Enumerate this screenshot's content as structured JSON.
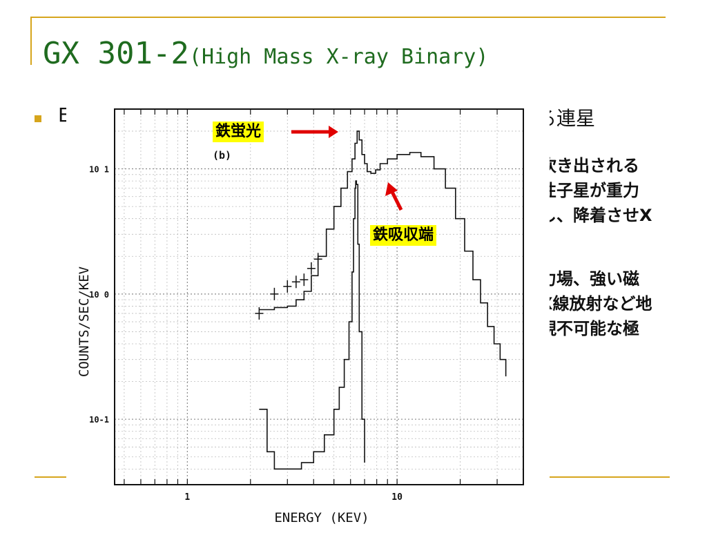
{
  "slide": {
    "title_main": "GX 301-2",
    "title_paren": "(High Mass X-ray Binary)",
    "bullet_first_letter": "E",
    "bullet_tail": "る連星",
    "side_lines": [
      "吹き出される",
      "性子星が重力",
      "し、降着させX",
      "。",
      "力場、強い磁",
      "X線放射など地",
      "現不可能な極"
    ]
  },
  "annotations": {
    "fe_fluorescence": "鉄蛍光",
    "fe_absorption_edge": "鉄吸収端"
  },
  "colors": {
    "title_green": "#1f6b1f",
    "accent_gold": "#d6a51c",
    "arrow_red": "#e00000",
    "highlight_yellow": "#ffff00"
  },
  "chart_data": {
    "type": "line",
    "panel_label": "(b)",
    "xlabel": "ENERGY (KEV)",
    "ylabel": "COUNTS/SEC/KEV",
    "x_scale": "log",
    "y_scale": "log",
    "xlim": [
      0.45,
      40
    ],
    "ylim": [
      0.03,
      30
    ],
    "x_tick_labels": [
      {
        "value": 1,
        "label": "1"
      },
      {
        "value": 10,
        "label": "10"
      }
    ],
    "y_tick_labels": [
      {
        "value": 10,
        "label": "10 1"
      },
      {
        "value": 1,
        "label": "10 0"
      },
      {
        "value": 0.1,
        "label": "10-1"
      }
    ],
    "grid": true,
    "series": [
      {
        "role": "model_total",
        "style": "step",
        "x": [
          2.2,
          2.6,
          3.0,
          3.3,
          3.6,
          3.9,
          4.2,
          4.6,
          5.0,
          5.4,
          5.8,
          6.1,
          6.3,
          6.45,
          6.6,
          6.8,
          7.0,
          7.2,
          7.5,
          7.9,
          8.3,
          9.0,
          10.0,
          11.5,
          13.0,
          15.0,
          17.0,
          19.0,
          21.0,
          23.0,
          25.0,
          27.0,
          29.0,
          31.0,
          33.0
        ],
        "y": [
          0.75,
          0.78,
          0.8,
          0.9,
          1.05,
          1.4,
          2.0,
          3.3,
          5.0,
          7.0,
          9.5,
          12.0,
          16.0,
          20.0,
          17.0,
          13.0,
          11.0,
          9.5,
          9.2,
          9.8,
          11.0,
          12.0,
          13.0,
          13.5,
          12.5,
          10.0,
          7.0,
          4.0,
          2.2,
          1.3,
          0.85,
          0.55,
          0.4,
          0.3,
          0.22
        ]
      },
      {
        "role": "observed_points",
        "style": "cross",
        "x": [
          2.2,
          2.6,
          3.0,
          3.3,
          3.6,
          3.9,
          4.2
        ],
        "y": [
          0.7,
          1.0,
          1.15,
          1.25,
          1.3,
          1.6,
          1.9
        ]
      },
      {
        "role": "iron_line_component",
        "style": "step",
        "x": [
          2.2,
          2.4,
          2.6,
          3.0,
          3.5,
          4.0,
          4.5,
          5.0,
          5.3,
          5.6,
          5.9,
          6.1,
          6.2,
          6.3,
          6.35,
          6.4,
          6.5,
          6.6,
          6.8,
          7.0
        ],
        "y": [
          0.12,
          0.055,
          0.04,
          0.04,
          0.045,
          0.055,
          0.075,
          0.12,
          0.18,
          0.3,
          0.6,
          1.5,
          4.0,
          7.0,
          8.0,
          7.5,
          2.5,
          0.5,
          0.1,
          0.045
        ]
      }
    ]
  }
}
